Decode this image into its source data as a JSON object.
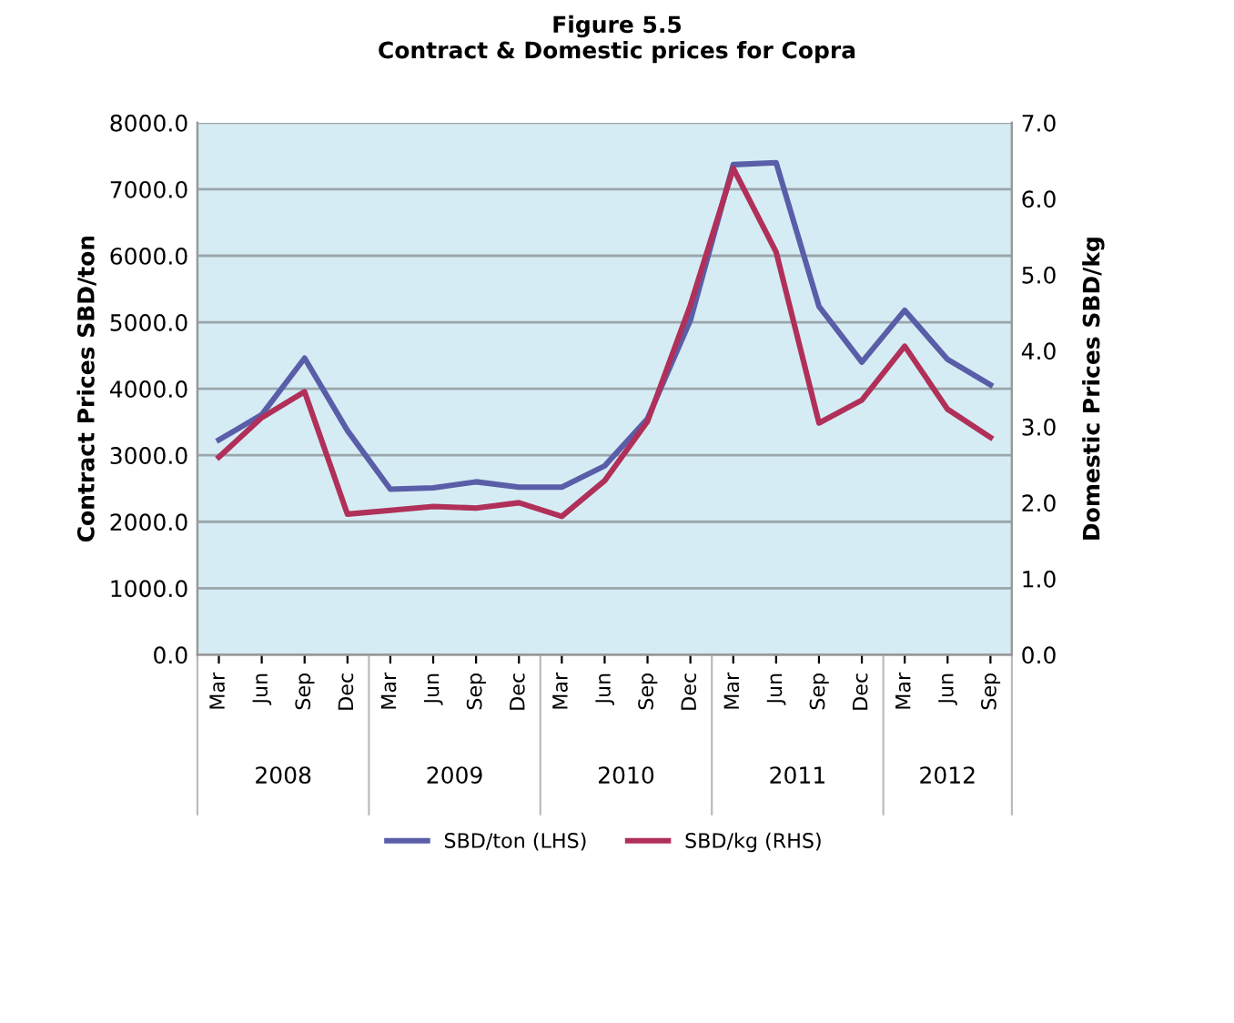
{
  "chart_data": {
    "type": "line",
    "title": "Figure 5.5\nContract & Domestic prices for Copra",
    "ylabel": "Contract Prices SBD/ton",
    "y2label": "Domestic Prices SBD/kg",
    "categories": [
      "Mar",
      "Jun",
      "Sep",
      "Dec",
      "Mar",
      "Jun",
      "Sep",
      "Dec",
      "Mar",
      "Jun",
      "Sep",
      "Dec",
      "Mar",
      "Jun",
      "Sep",
      "Dec",
      "Mar",
      "Jun",
      "Sep"
    ],
    "annotations": [
      "2008",
      "2009",
      "2010",
      "2011",
      "2012"
    ],
    "series": [
      {
        "name": "SBD/ton (LHS)",
        "color": "#5a5ea8",
        "values": [
          3230,
          3610,
          4460,
          3370,
          2490,
          2510,
          2600,
          2520,
          2520,
          2840,
          3550,
          5030,
          7370,
          7400,
          5240,
          4400,
          5180,
          4440,
          4060
        ]
      },
      {
        "name": "SBD/kg (RHS)",
        "color": "#b0305a",
        "axis": "y2",
        "values": [
          2.6,
          3.12,
          3.46,
          1.85,
          1.9,
          1.95,
          1.93,
          2.0,
          1.82,
          2.29,
          3.07,
          4.6,
          6.4,
          5.3,
          3.05,
          3.35,
          4.06,
          3.23,
          2.86
        ]
      }
    ],
    "ylim": [
      0,
      8000
    ],
    "yticks": [
      {
        "value": 0,
        "label": "0.0"
      },
      {
        "value": 1000,
        "label": "1000.0"
      },
      {
        "value": 2000,
        "label": "2000.0"
      },
      {
        "value": 3000,
        "label": "3000.0"
      },
      {
        "value": 4000,
        "label": "4000.0"
      },
      {
        "value": 5000,
        "label": "5000.0"
      },
      {
        "value": 6000,
        "label": "6000.0"
      },
      {
        "value": 7000,
        "label": "7000.0"
      },
      {
        "value": 8000,
        "label": "8000.0"
      }
    ],
    "y2lim": [
      0,
      7
    ],
    "y2ticks": [
      {
        "value": 0,
        "label": "0.0"
      },
      {
        "value": 1,
        "label": "1.0"
      },
      {
        "value": 2,
        "label": "2.0"
      },
      {
        "value": 3,
        "label": "3.0"
      },
      {
        "value": 4,
        "label": "4.0"
      },
      {
        "value": 5,
        "label": "5.0"
      },
      {
        "value": 6,
        "label": "6.0"
      },
      {
        "value": 7,
        "label": "7.0"
      }
    ],
    "grid": "y",
    "legend": "bottom"
  }
}
